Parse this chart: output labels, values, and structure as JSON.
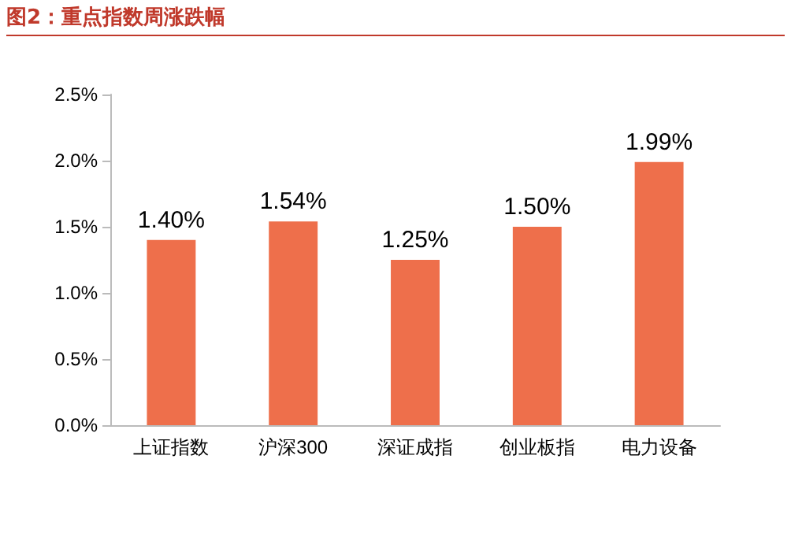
{
  "chart_data": {
    "type": "bar",
    "title": "图2：重点指数周涨跌幅",
    "categories": [
      "上证指数",
      "沪深300",
      "深证成指",
      "创业板指",
      "电力设备"
    ],
    "values": [
      1.4,
      1.54,
      1.25,
      1.5,
      1.99
    ],
    "value_labels": [
      "1.40%",
      "1.54%",
      "1.25%",
      "1.50%",
      "1.99%"
    ],
    "color": "#ee6f4b",
    "ylim": [
      0,
      2.5
    ],
    "yticks": [
      {
        "value": 0,
        "label": "0.0%"
      },
      {
        "value": 0.5,
        "label": "0.5%"
      },
      {
        "value": 1,
        "label": "1.0%"
      },
      {
        "value": 1.5,
        "label": "1.5%"
      },
      {
        "value": 2,
        "label": "2.0%"
      },
      {
        "value": 2.5,
        "label": "2.5%"
      }
    ]
  }
}
